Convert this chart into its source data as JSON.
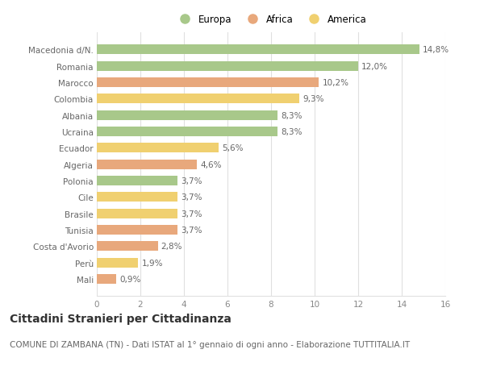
{
  "categories": [
    "Macedonia d/N.",
    "Romania",
    "Marocco",
    "Colombia",
    "Albania",
    "Ucraina",
    "Ecuador",
    "Algeria",
    "Polonia",
    "Cile",
    "Brasile",
    "Tunisia",
    "Costa d'Avorio",
    "Perù",
    "Mali"
  ],
  "values": [
    14.8,
    12.0,
    10.2,
    9.3,
    8.3,
    8.3,
    5.6,
    4.6,
    3.7,
    3.7,
    3.7,
    3.7,
    2.8,
    1.9,
    0.9
  ],
  "colors": [
    "#a8c88a",
    "#a8c88a",
    "#e8a87c",
    "#f0d070",
    "#a8c88a",
    "#a8c88a",
    "#f0d070",
    "#e8a87c",
    "#a8c88a",
    "#f0d070",
    "#f0d070",
    "#e8a87c",
    "#e8a87c",
    "#f0d070",
    "#e8a87c"
  ],
  "labels": [
    "14,8%",
    "12,0%",
    "10,2%",
    "9,3%",
    "8,3%",
    "8,3%",
    "5,6%",
    "4,6%",
    "3,7%",
    "3,7%",
    "3,7%",
    "3,7%",
    "2,8%",
    "1,9%",
    "0,9%"
  ],
  "legend_labels": [
    "Europa",
    "Africa",
    "America"
  ],
  "legend_colors": [
    "#a8c88a",
    "#e8a87c",
    "#f0d070"
  ],
  "title": "Cittadini Stranieri per Cittadinanza",
  "subtitle": "COMUNE DI ZAMBANA (TN) - Dati ISTAT al 1° gennaio di ogni anno - Elaborazione TUTTITALIA.IT",
  "xlim": [
    0,
    16
  ],
  "xticks": [
    0,
    2,
    4,
    6,
    8,
    10,
    12,
    14,
    16
  ],
  "bg_color": "#ffffff",
  "plot_bg_color": "#ffffff",
  "grid_color": "#e0e0e0",
  "bar_height": 0.6,
  "title_fontsize": 10,
  "subtitle_fontsize": 7.5,
  "label_fontsize": 7.5,
  "tick_fontsize": 7.5,
  "legend_fontsize": 8.5,
  "axis_color": "#aaaaaa"
}
